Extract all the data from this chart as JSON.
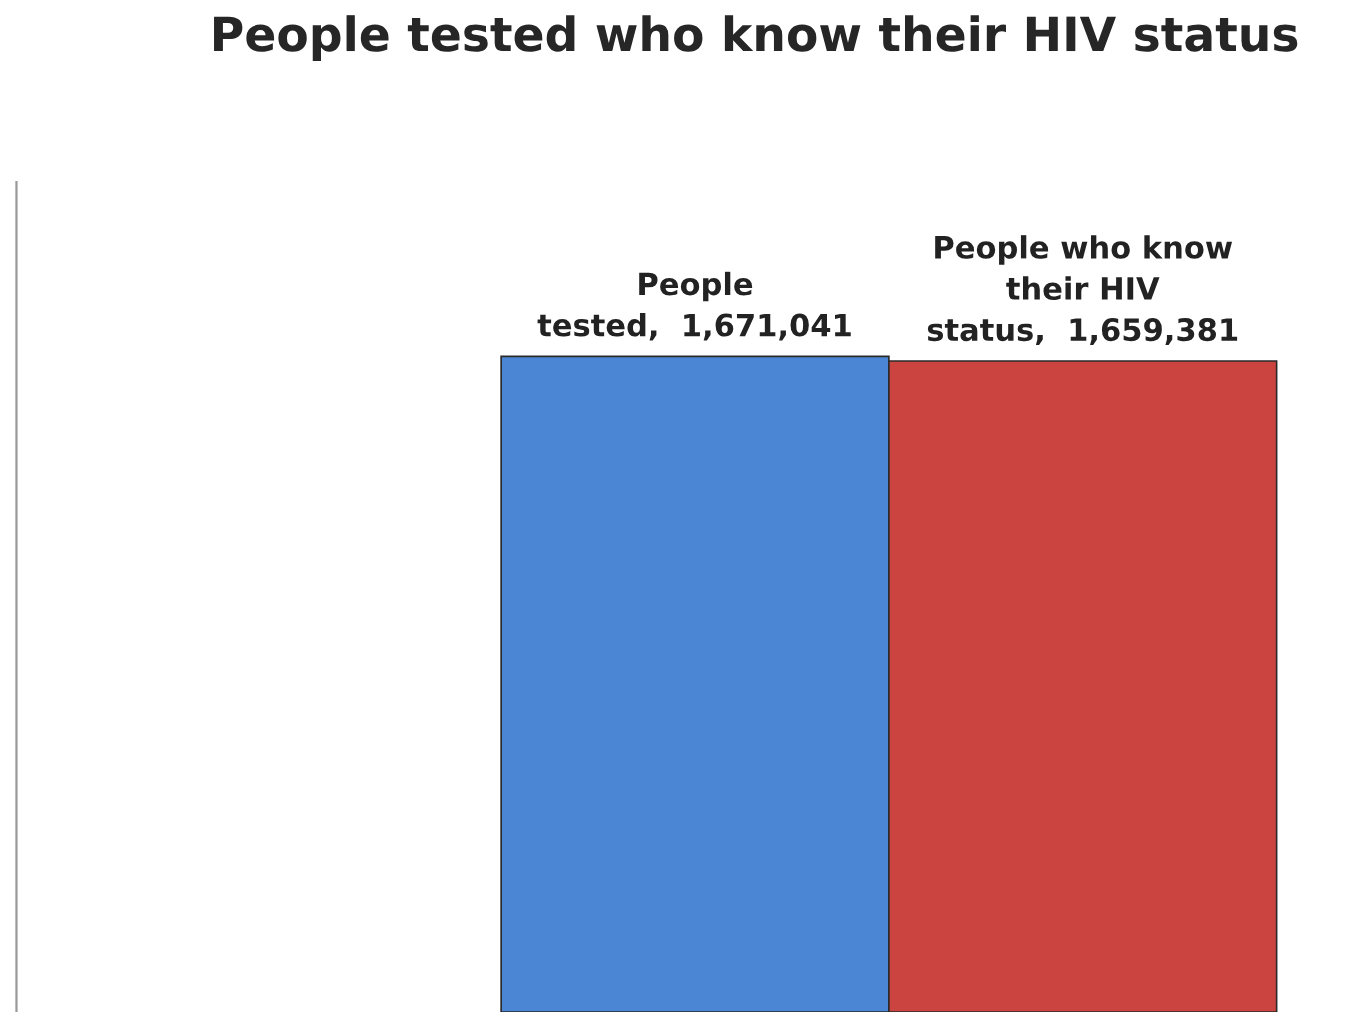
{
  "chart_data": {
    "type": "bar",
    "title": "People tested who know their HIV status",
    "categories": [
      null,
      null
    ],
    "values": [
      1671041,
      1659381
    ],
    "colors": [
      "#4a86d4",
      "#cc4440"
    ],
    "value_labels": [
      "People\ntested,  1,671,041",
      "People who know\ntheir HIV\nstatus,  1,659,381"
    ],
    "grid": false,
    "legend": false
  }
}
